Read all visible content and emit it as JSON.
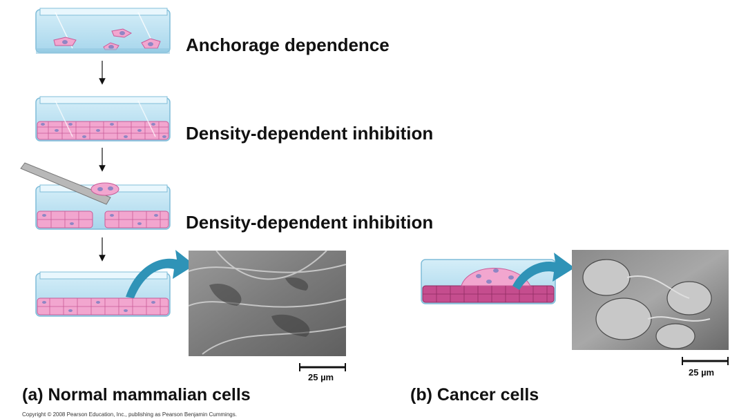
{
  "steps": [
    {
      "label": "Anchorage dependence"
    },
    {
      "label": "Density-dependent inhibition"
    },
    {
      "label": "Density-dependent inhibition"
    }
  ],
  "panel_a": {
    "letter": "(a)",
    "title": "Normal mammalian cells",
    "scale_bar": "25 µm"
  },
  "panel_b": {
    "letter": "(b)",
    "title": "Cancer cells",
    "scale_bar": "25 µm"
  },
  "copyright": "Copyright © 2008 Pearson Education, Inc., publishing as Pearson Benjamin Cummings.",
  "colors": {
    "dish": "#bfe3f3",
    "dish_edge": "#7fbcd8",
    "cell": "#f2a6cf",
    "cell_edge": "#c85a97",
    "nucleus": "#8f86c4",
    "arrow": "#2f93b7"
  }
}
